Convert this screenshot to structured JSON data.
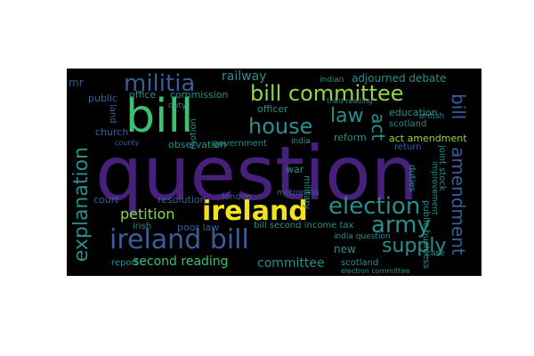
{
  "words": {
    "question": "question",
    "ireland": "ireland",
    "bill": "bill",
    "ireland_bill": "ireland bill",
    "bill_committee": "bill committee",
    "militia": "militia",
    "house": "house",
    "law": "law",
    "election": "election",
    "army": "army",
    "supply": "supply",
    "explanation": "explanation",
    "amendment": "amendment",
    "bill_right": "bill",
    "act": "act",
    "petition": "petition",
    "second_reading": "second reading",
    "committee": "committee",
    "adjourned_debate": "adjourned debate",
    "railway": "railway",
    "commission": "commission",
    "office": "office",
    "public": "public",
    "church": "church",
    "observation": "observation",
    "government": "government",
    "officer": "officer",
    "court": "court",
    "resolution": "resolution",
    "report": "report",
    "poor_law": "poor law",
    "bill_second_income_tax": "bill second income tax",
    "india_question": "india question",
    "act_amendment": "act amendment",
    "education": "education",
    "scotland": "scotland",
    "scotland_2": "scotland",
    "reform": "reform",
    "war": "war",
    "duty": "duty",
    "indian": "indian",
    "india": "india",
    "return": "return",
    "british": "british",
    "new": "new",
    "case": "case",
    "duties": "duties",
    "joint_stock": "joint stock",
    "public_business": "public business",
    "london": "london",
    "irish": "irish",
    "metropolis": "metropolis",
    "military": "military",
    "mr": "mr",
    "land": "land",
    "motion": "motion",
    "election_committee": "election committee",
    "third_reading": "third reading",
    "county": "county",
    "improvement": "improvement"
  },
  "colors": {
    "background": "#000000",
    "page": "#ffffff",
    "purple": "#46207a",
    "teal": "#2a8e8b",
    "blue": "#3a5d9a",
    "green": "#3fbf72",
    "yellow": "#f2e21d",
    "lime": "#8ed645"
  }
}
